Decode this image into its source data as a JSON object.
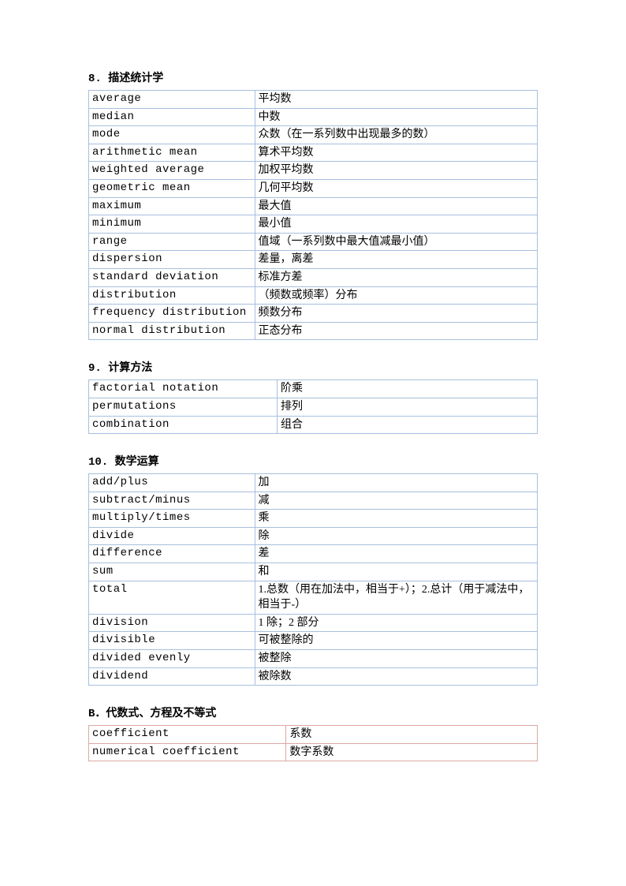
{
  "sections": [
    {
      "title": "8. 描述统计学",
      "table_class": "blue",
      "col1_width": "37%",
      "rows": [
        {
          "en": "average",
          "cn": "平均数"
        },
        {
          "en": "median",
          "cn": "中数"
        },
        {
          "en": "mode",
          "cn": "众数（在一系列数中出现最多的数）"
        },
        {
          "en": "arithmetic  mean",
          "cn": "算术平均数"
        },
        {
          "en": "weighted  average",
          "cn": "加权平均数"
        },
        {
          "en": "geometric  mean",
          "cn": "几何平均数"
        },
        {
          "en": "maximum",
          "cn": "最大值"
        },
        {
          "en": "minimum",
          "cn": "最小值"
        },
        {
          "en": "range",
          "cn": "值域（一系列数中最大值减最小值）"
        },
        {
          "en": "dispersion",
          "cn": "差量，离差"
        },
        {
          "en": "standard  deviation",
          "cn": "标准方差"
        },
        {
          "en": "distribution",
          "cn": "（频数或频率）分布"
        },
        {
          "en": "frequency  distribution",
          "cn": "频数分布"
        },
        {
          "en": "normal  distribution",
          "cn": "正态分布"
        }
      ]
    },
    {
      "title": "9. 计算方法",
      "table_class": "blue",
      "col1_width": "42%",
      "rows": [
        {
          "en": "factorial  notation",
          "cn": "阶乘"
        },
        {
          "en": "permutations",
          "cn": "排列"
        },
        {
          "en": "combination",
          "cn": "组合"
        }
      ]
    },
    {
      "title": "10. 数学运算",
      "table_class": "blue",
      "col1_width": "37%",
      "rows": [
        {
          "en": "add/plus",
          "cn": "加"
        },
        {
          "en": "subtract/minus",
          "cn": "减"
        },
        {
          "en": "multiply/times",
          "cn": "乘"
        },
        {
          "en": "divide",
          "cn": "除"
        },
        {
          "en": "difference",
          "cn": "差"
        },
        {
          "en": "sum",
          "cn": "和"
        },
        {
          "en": "total",
          "cn": "1.总数（用在加法中，相当于+）；2.总计（用于减法中，相当于-）"
        },
        {
          "en": "division",
          "cn": "1 除；2 部分"
        },
        {
          "en": "divisible",
          "cn": "可被整除的"
        },
        {
          "en": "divided  evenly",
          "cn": "被整除"
        },
        {
          "en": "dividend",
          "cn": "被除数"
        }
      ]
    },
    {
      "title": "B．代数式、方程及不等式",
      "table_class": "red",
      "col1_width": "44%",
      "rows": [
        {
          "en": "coefficient",
          "cn": "系数"
        },
        {
          "en": "numerical  coefficient",
          "cn": "数字系数"
        }
      ]
    }
  ]
}
